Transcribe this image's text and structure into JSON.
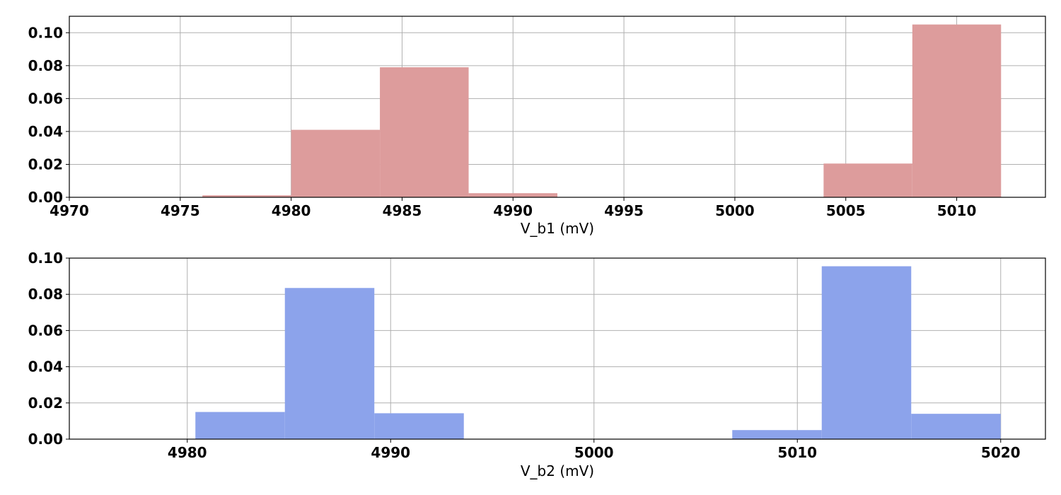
{
  "chart_data": [
    {
      "type": "bar",
      "title": "",
      "xlabel": "V_b1 (mV)",
      "ylabel": "",
      "xlim": [
        4970,
        5014
      ],
      "ylim": [
        0,
        0.11
      ],
      "grid": true,
      "color": "#dd9c9c",
      "x_ticks": [
        4970,
        4975,
        4980,
        4985,
        4990,
        4995,
        5000,
        5005,
        5010
      ],
      "y_ticks": [
        0.0,
        0.02,
        0.04,
        0.06,
        0.08,
        0.1
      ],
      "x_tick_labels": [
        "4970",
        "4975",
        "4980",
        "4985",
        "4990",
        "4995",
        "5000",
        "5005",
        "5010"
      ],
      "y_tick_labels": [
        "0.00",
        "0.02",
        "0.04",
        "0.06",
        "0.08",
        "0.10"
      ],
      "bins": [
        {
          "x0": 4976,
          "x1": 4980,
          "value": 0.0012
        },
        {
          "x0": 4980,
          "x1": 4984,
          "value": 0.041
        },
        {
          "x0": 4984,
          "x1": 4988,
          "value": 0.079
        },
        {
          "x0": 4988,
          "x1": 4992,
          "value": 0.0025
        },
        {
          "x0": 4992,
          "x1": 4996,
          "value": 0
        },
        {
          "x0": 4996,
          "x1": 5000,
          "value": 0
        },
        {
          "x0": 5000,
          "x1": 5004,
          "value": 0
        },
        {
          "x0": 5004,
          "x1": 5008,
          "value": 0.0205
        },
        {
          "x0": 5008,
          "x1": 5012,
          "value": 0.105
        }
      ]
    },
    {
      "type": "bar",
      "title": "",
      "xlabel": "V_b2 (mV)",
      "ylabel": "",
      "xlim": [
        4974.2,
        5022.2
      ],
      "ylim": [
        0,
        0.1
      ],
      "grid": true,
      "color": "#8ca3eb",
      "x_ticks": [
        4980,
        4990,
        5000,
        5010,
        5020
      ],
      "y_ticks": [
        0.0,
        0.02,
        0.04,
        0.06,
        0.08,
        0.1
      ],
      "x_tick_labels": [
        "4980",
        "4990",
        "5000",
        "5010",
        "5020"
      ],
      "y_tick_labels": [
        "0.00",
        "0.02",
        "0.04",
        "0.06",
        "0.08",
        "0.10"
      ],
      "bins": [
        {
          "x0": 4980.4,
          "x1": 4984.8,
          "value": 0.015
        },
        {
          "x0": 4984.8,
          "x1": 4989.2,
          "value": 0.0835
        },
        {
          "x0": 4989.2,
          "x1": 4993.6,
          "value": 0.0143
        },
        {
          "x0": 4993.6,
          "x1": 4998.0,
          "value": 0
        },
        {
          "x0": 4998.0,
          "x1": 5002.4,
          "value": 0
        },
        {
          "x0": 5002.4,
          "x1": 5006.8,
          "value": 0
        },
        {
          "x0": 5006.8,
          "x1": 5011.2,
          "value": 0.005
        },
        {
          "x0": 5011.2,
          "x1": 5015.6,
          "value": 0.0955
        },
        {
          "x0": 5015.6,
          "x1": 5020.0,
          "value": 0.014
        }
      ]
    }
  ]
}
